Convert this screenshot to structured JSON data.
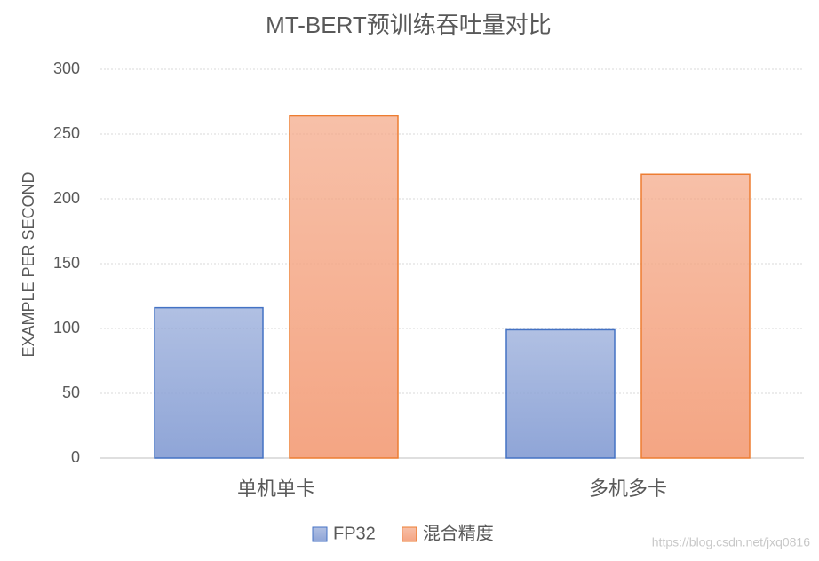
{
  "chart_data": {
    "type": "bar",
    "title": "MT-BERT预训练吞吐量对比",
    "y_label": "EXAMPLE PER SECOND",
    "categories": [
      "单机单卡",
      "多机多卡"
    ],
    "series": [
      {
        "name": "FP32",
        "color": "#8fa5d7",
        "values": [
          116,
          99
        ]
      },
      {
        "name": "混合精度",
        "color": "#f4a583",
        "values": [
          264,
          219
        ]
      }
    ],
    "ylim": [
      0,
      300
    ],
    "yticks": [
      0,
      50,
      100,
      150,
      200,
      250,
      300
    ],
    "grid": true,
    "legend": "bottom",
    "watermark": "https://blog.csdn.net/jxq0816"
  }
}
